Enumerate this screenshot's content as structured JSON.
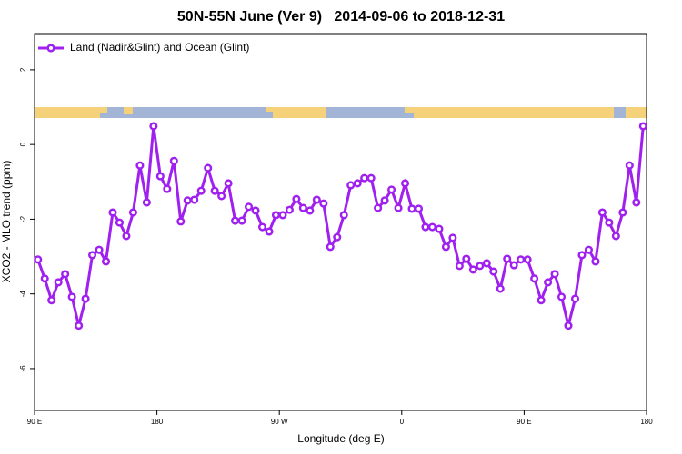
{
  "chart_data": {
    "type": "line",
    "title": "50N-55N June (Ver 9)   2014-09-06 to 2018-12-31",
    "xlabel": "Longitude (deg E)",
    "ylabel": "XCO2 - MLO trend (ppm)",
    "xlim": [
      90,
      540
    ],
    "ylim": [
      -7.12,
      2.97
    ],
    "xticks": [
      {
        "value": 90,
        "label": "90 E"
      },
      {
        "value": 180,
        "label": "180"
      },
      {
        "value": 270,
        "label": "90 W"
      },
      {
        "value": 360,
        "label": "0"
      },
      {
        "value": 450,
        "label": "90 E"
      },
      {
        "value": 540,
        "label": "180"
      }
    ],
    "yticks": [
      -6,
      -4,
      -2,
      0,
      2
    ],
    "legend": "top-left",
    "x": [
      92.5,
      97.5,
      102.5,
      107.5,
      112.5,
      117.5,
      122.5,
      127.5,
      132.5,
      137.5,
      142.5,
      147.5,
      152.5,
      157.5,
      162.5,
      167.5,
      172.5,
      177.5,
      182.5,
      187.5,
      192.5,
      197.5,
      202.5,
      207.5,
      212.5,
      217.5,
      222.5,
      227.5,
      232.5,
      237.5,
      242.5,
      247.5,
      252.5,
      257.5,
      262.5,
      267.5,
      272.5,
      277.5,
      282.5,
      287.5,
      292.5,
      297.5,
      302.5,
      307.5,
      312.5,
      317.5,
      322.5,
      327.5,
      332.5,
      337.5,
      342.5,
      347.5,
      352.5,
      357.5,
      362.5,
      367.5,
      372.5,
      377.5,
      382.5,
      387.5,
      392.5,
      397.5,
      402.5,
      407.5,
      412.5,
      417.5,
      422.5,
      427.5,
      432.5,
      437.5,
      442.5,
      447.5,
      452.5,
      457.5,
      462.5,
      467.5,
      472.5,
      477.5,
      482.5,
      487.5,
      492.5,
      497.5,
      502.5,
      507.5,
      512.5,
      517.5,
      522.5,
      527.5,
      532.5,
      537.5
    ],
    "series": [
      {
        "name": "Land (Nadir&Glint) and Ocean (Glint)",
        "color": "#a020f0",
        "values": [
          -3.08,
          -3.59,
          -4.17,
          -3.69,
          -3.47,
          -4.08,
          -4.85,
          -4.13,
          -2.96,
          -2.82,
          -3.13,
          -1.82,
          -2.09,
          -2.45,
          -1.82,
          -0.56,
          -1.55,
          0.49,
          -0.85,
          -1.19,
          -0.44,
          -2.06,
          -1.5,
          -1.48,
          -1.24,
          -0.63,
          -1.24,
          -1.38,
          -1.04,
          -2.04,
          -2.04,
          -1.67,
          -1.77,
          -2.21,
          -2.33,
          -1.89,
          -1.89,
          -1.75,
          -1.46,
          -1.7,
          -1.77,
          -1.48,
          -1.58,
          -2.74,
          -2.48,
          -1.89,
          -1.09,
          -1.04,
          -0.9,
          -0.9,
          -1.7,
          -1.5,
          -1.21,
          -1.7,
          -1.04,
          -1.72,
          -1.72,
          -2.21,
          -2.21,
          -2.26,
          -2.74,
          -2.5,
          -3.25,
          -3.06,
          -3.35,
          -3.25,
          -3.18,
          -3.4,
          -3.86,
          -3.06,
          -3.23,
          -3.08,
          -3.08,
          -3.59,
          -4.17,
          -3.69,
          -3.47,
          -4.08,
          -4.85,
          -4.13,
          -2.96,
          -2.82,
          -3.13,
          -1.82,
          -2.09,
          -2.45,
          -1.82,
          -0.56,
          -1.55,
          0.49
        ]
      }
    ]
  }
}
